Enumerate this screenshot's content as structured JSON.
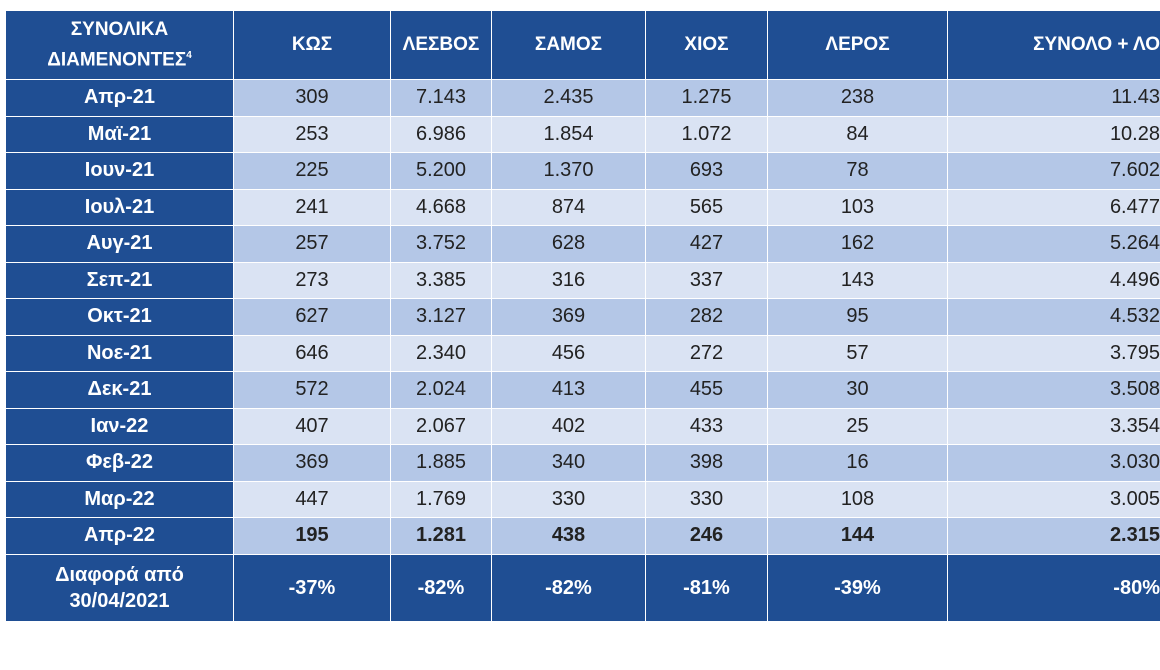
{
  "table": {
    "header": [
      "ΣΥΝΟΛΙΚΑ ΔΙΑΜΕΝΟΝΤΕΣ",
      "ΚΩΣ",
      "ΛΕΣΒΟΣ",
      "ΣΑΜΟΣ",
      "ΧΙΟΣ",
      "ΛΕΡΟΣ",
      "ΣΥΝΟΛΟ + ΛΟ"
    ],
    "header_note": "4",
    "rows": [
      [
        "Απρ-21",
        "309",
        "7.143",
        "2.435",
        "1.275",
        "238",
        "11.43"
      ],
      [
        "Μαϊ-21",
        "253",
        "6.986",
        "1.854",
        "1.072",
        "84",
        "10.28"
      ],
      [
        "Ιουν-21",
        "225",
        "5.200",
        "1.370",
        "693",
        "78",
        "7.602"
      ],
      [
        "Ιουλ-21",
        "241",
        "4.668",
        "874",
        "565",
        "103",
        "6.477"
      ],
      [
        "Αυγ-21",
        "257",
        "3.752",
        "628",
        "427",
        "162",
        "5.264"
      ],
      [
        "Σεπ-21",
        "273",
        "3.385",
        "316",
        "337",
        "143",
        "4.496"
      ],
      [
        "Οκτ-21",
        "627",
        "3.127",
        "369",
        "282",
        "95",
        "4.532"
      ],
      [
        "Νοε-21",
        "646",
        "2.340",
        "456",
        "272",
        "57",
        "3.795"
      ],
      [
        "Δεκ-21",
        "572",
        "2.024",
        "413",
        "455",
        "30",
        "3.508"
      ],
      [
        "Ιαν-22",
        "407",
        "2.067",
        "402",
        "433",
        "25",
        "3.354"
      ],
      [
        "Φεβ-22",
        "369",
        "1.885",
        "340",
        "398",
        "16",
        "3.030"
      ],
      [
        "Μαρ-22",
        "447",
        "1.769",
        "330",
        "330",
        "108",
        "3.005"
      ],
      [
        "Απρ-22",
        "195",
        "1.281",
        "438",
        "246",
        "144",
        "2.315"
      ]
    ],
    "footer": [
      "Διαφορά από 30/04/2021",
      "-37%",
      "-82%",
      "-82%",
      "-81%",
      "-39%",
      "-80%"
    ]
  }
}
